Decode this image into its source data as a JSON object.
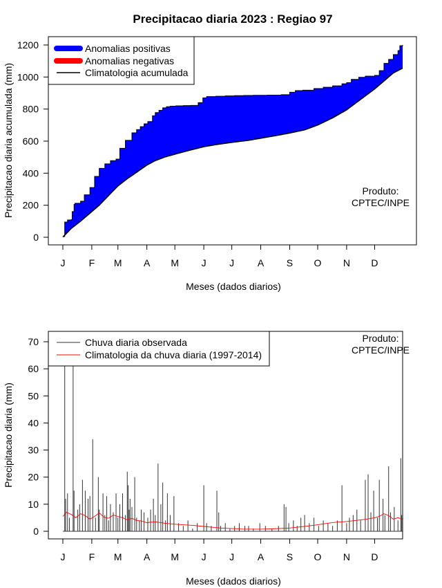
{
  "title": "Precipitacao diaria 2023 : Regiao 97",
  "colors": {
    "positive": "#0000ff",
    "negative": "#ff0000",
    "black": "#000000",
    "obs": "#333333",
    "clim": "#ff0000"
  },
  "chart_data": [
    {
      "type": "area",
      "id": "accumulated",
      "xlabel": "Meses (dados diarios)",
      "ylabel": "Precipitacao diaria acumulada (mm)",
      "ylim": [
        0,
        1250
      ],
      "yticks": [
        0,
        200,
        400,
        600,
        800,
        1000,
        1200
      ],
      "month_labels": [
        "J",
        "F",
        "M",
        "A",
        "M",
        "J",
        "J",
        "A",
        "S",
        "O",
        "N",
        "D"
      ],
      "month_start_days": [
        1,
        32,
        60,
        91,
        121,
        152,
        182,
        213,
        244,
        274,
        305,
        335
      ],
      "legend": [
        "Anomalias positivas",
        "Anomalias negativas",
        "Climatologia acumulada"
      ],
      "annotation": [
        "Produto:",
        "CPTEC/INPE"
      ],
      "observed_cumulative": {
        "day": [
          1,
          3,
          6,
          10,
          11,
          13,
          14,
          20,
          24,
          30,
          35,
          40,
          46,
          52,
          58,
          62,
          68,
          75,
          80,
          84,
          88,
          92,
          97,
          100,
          104,
          108,
          112,
          116,
          122,
          130,
          138,
          146,
          151,
          155,
          165,
          175,
          185,
          195,
          205,
          220,
          235,
          244,
          250,
          258,
          270,
          280,
          290,
          300,
          305,
          310,
          318,
          325,
          335,
          340,
          345,
          350,
          355,
          360,
          362,
          365
        ],
        "value": [
          5,
          95,
          108,
          110,
          160,
          205,
          212,
          225,
          265,
          310,
          380,
          430,
          458,
          478,
          488,
          555,
          605,
          652,
          672,
          690,
          708,
          722,
          758,
          778,
          792,
          808,
          815,
          818,
          820,
          822,
          823,
          840,
          870,
          878,
          880,
          882,
          884,
          885,
          886,
          887,
          890,
          905,
          915,
          918,
          928,
          936,
          945,
          958,
          965,
          985,
          998,
          1005,
          1010,
          1040,
          1085,
          1110,
          1140,
          1165,
          1195,
          1200
        ]
      },
      "climatology_cumulative": {
        "day": [
          1,
          5,
          10,
          20,
          30,
          40,
          50,
          60,
          70,
          80,
          91,
          100,
          110,
          121,
          135,
          152,
          165,
          182,
          200,
          213,
          230,
          244,
          260,
          274,
          290,
          305,
          320,
          335,
          345,
          355,
          365
        ],
        "value": [
          2,
          25,
          55,
          100,
          150,
          200,
          260,
          320,
          365,
          405,
          450,
          478,
          500,
          518,
          540,
          565,
          578,
          592,
          605,
          618,
          635,
          650,
          670,
          700,
          745,
          795,
          860,
          925,
          975,
          1025,
          1055
        ]
      }
    },
    {
      "type": "line",
      "id": "daily",
      "xlabel": "Meses (dados diarios)",
      "ylabel": "Precipitacao diaria (mm)",
      "ylim": [
        0,
        73
      ],
      "yticks": [
        0,
        10,
        20,
        30,
        40,
        50,
        60,
        70
      ],
      "month_labels": [
        "J",
        "F",
        "M",
        "A",
        "M",
        "J",
        "J",
        "A",
        "S",
        "O",
        "N",
        "D"
      ],
      "month_start_days": [
        1,
        32,
        60,
        91,
        121,
        152,
        182,
        213,
        244,
        274,
        305,
        335
      ],
      "legend": [
        "Chuva diaria observada",
        "Climatologia da chuva diaria (1997-2014)"
      ],
      "annotation": [
        "Produto:",
        "CPTEC/INPE"
      ],
      "observed_spikes": {
        "day": [
          3,
          4,
          6,
          8,
          12,
          13,
          17,
          19,
          22,
          25,
          28,
          30,
          33,
          36,
          39,
          40,
          44,
          46,
          48,
          50,
          52,
          55,
          58,
          60,
          62,
          65,
          68,
          70,
          71,
          72,
          73,
          75,
          78,
          80,
          83,
          85,
          88,
          92,
          95,
          98,
          100,
          103,
          106,
          108,
          111,
          113,
          116,
          120,
          125,
          130,
          135,
          140,
          145,
          152,
          155,
          160,
          166,
          168,
          170,
          175,
          180,
          185,
          190,
          196,
          200,
          205,
          212,
          218,
          225,
          232,
          238,
          240,
          243,
          248,
          252,
          256,
          260,
          265,
          270,
          275,
          280,
          285,
          290,
          295,
          300,
          305,
          308,
          312,
          316,
          320,
          325,
          328,
          331,
          334,
          338,
          340,
          344,
          346,
          350,
          352,
          356,
          360,
          363,
          364
        ],
        "value": [
          62,
          12,
          14,
          5,
          62,
          15,
          8,
          10,
          19,
          15,
          12,
          13,
          34,
          5,
          20,
          8,
          14,
          6,
          13,
          4,
          10,
          7,
          14,
          5,
          10,
          14,
          6,
          22,
          17,
          8,
          12,
          9,
          20,
          5,
          4,
          8,
          7,
          5,
          8,
          12,
          6,
          25,
          10,
          18,
          4,
          14,
          6,
          13,
          3,
          2,
          4,
          1,
          3,
          17,
          3,
          2,
          15,
          7,
          2,
          3,
          1,
          2,
          3,
          2,
          2,
          1,
          3,
          2,
          1,
          2,
          10,
          9,
          3,
          4,
          2,
          5,
          6,
          3,
          5,
          2,
          4,
          3,
          2,
          4,
          17,
          3,
          5,
          6,
          8,
          4,
          19,
          21,
          7,
          15,
          5,
          19,
          12,
          6,
          24,
          7,
          9,
          4,
          27,
          6
        ]
      },
      "climatology_daily": {
        "day": [
          1,
          5,
          10,
          15,
          20,
          25,
          30,
          35,
          40,
          45,
          50,
          55,
          60,
          65,
          70,
          75,
          80,
          85,
          91,
          100,
          110,
          121,
          130,
          140,
          152,
          160,
          170,
          182,
          195,
          213,
          225,
          244,
          255,
          265,
          274,
          285,
          295,
          305,
          315,
          325,
          335,
          340,
          345,
          350,
          355,
          360,
          365
        ],
        "value": [
          5.5,
          7.0,
          6.2,
          5.0,
          6.5,
          5.8,
          4.5,
          5.5,
          6.8,
          5.2,
          4.8,
          6.0,
          5.5,
          5.0,
          4.2,
          4.8,
          4.0,
          3.8,
          3.2,
          3.5,
          3.0,
          2.6,
          2.4,
          2.2,
          1.8,
          1.5,
          1.2,
          1.0,
          0.8,
          0.8,
          0.9,
          1.2,
          1.6,
          2.0,
          2.4,
          3.0,
          3.4,
          3.6,
          4.0,
          4.4,
          5.0,
          5.5,
          6.5,
          5.8,
          4.5,
          5.0,
          4.5
        ]
      }
    }
  ]
}
